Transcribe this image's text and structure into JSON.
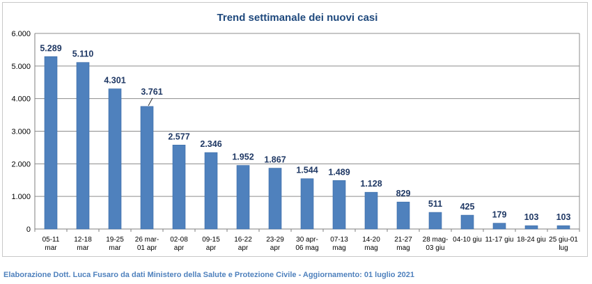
{
  "footer": {
    "text": "Elaborazione Dott. Luca Fusaro da dati Ministero della Salute e Protezione Civile - Aggiornamento: 01 luglio 2021"
  },
  "colors": {
    "bar": "#4f81bd",
    "bar_stroke": "#3a6aa6",
    "title": "#1f497d",
    "data_label": "#1f3864",
    "grid": "#8c8c8c",
    "footer": "#4f81bd"
  },
  "chart_data": {
    "type": "bar",
    "title": "Trend settimanale dei nuovi casi",
    "xlabel": "",
    "ylabel": "",
    "ylim": [
      0,
      6000
    ],
    "yticks": [
      0,
      1000,
      2000,
      3000,
      4000,
      5000,
      6000
    ],
    "ytick_labels": [
      "0",
      "1.000",
      "2.000",
      "3.000",
      "4.000",
      "5.000",
      "6.000"
    ],
    "grid": true,
    "legend": "none",
    "categories": [
      [
        "05-11",
        "mar"
      ],
      [
        "12-18",
        "mar"
      ],
      [
        "19-25",
        "mar"
      ],
      [
        "26 mar-",
        "01 apr"
      ],
      [
        "02-08",
        "apr"
      ],
      [
        "09-15",
        "apr"
      ],
      [
        "16-22",
        "apr"
      ],
      [
        "23-29",
        "apr"
      ],
      [
        "30 apr-",
        "06 mag"
      ],
      [
        "07-13",
        "mag"
      ],
      [
        "14-20",
        "mag"
      ],
      [
        "21-27",
        "mag"
      ],
      [
        "28 mag-",
        "03 giu"
      ],
      [
        "04-10 giu",
        ""
      ],
      [
        "11-17 giu",
        ""
      ],
      [
        "18-24 giu",
        ""
      ],
      [
        "25 giu-01",
        "lug"
      ]
    ],
    "values": [
      5289,
      5110,
      4301,
      3761,
      2577,
      2346,
      1952,
      1867,
      1544,
      1489,
      1128,
      829,
      511,
      425,
      179,
      103,
      103
    ],
    "data_labels": [
      "5.289",
      "5.110",
      "4.301",
      "3.761",
      "2.577",
      "2.346",
      "1.952",
      "1.867",
      "1.544",
      "1.489",
      "1.128",
      "829",
      "511",
      "425",
      "179",
      "103",
      "103"
    ]
  }
}
